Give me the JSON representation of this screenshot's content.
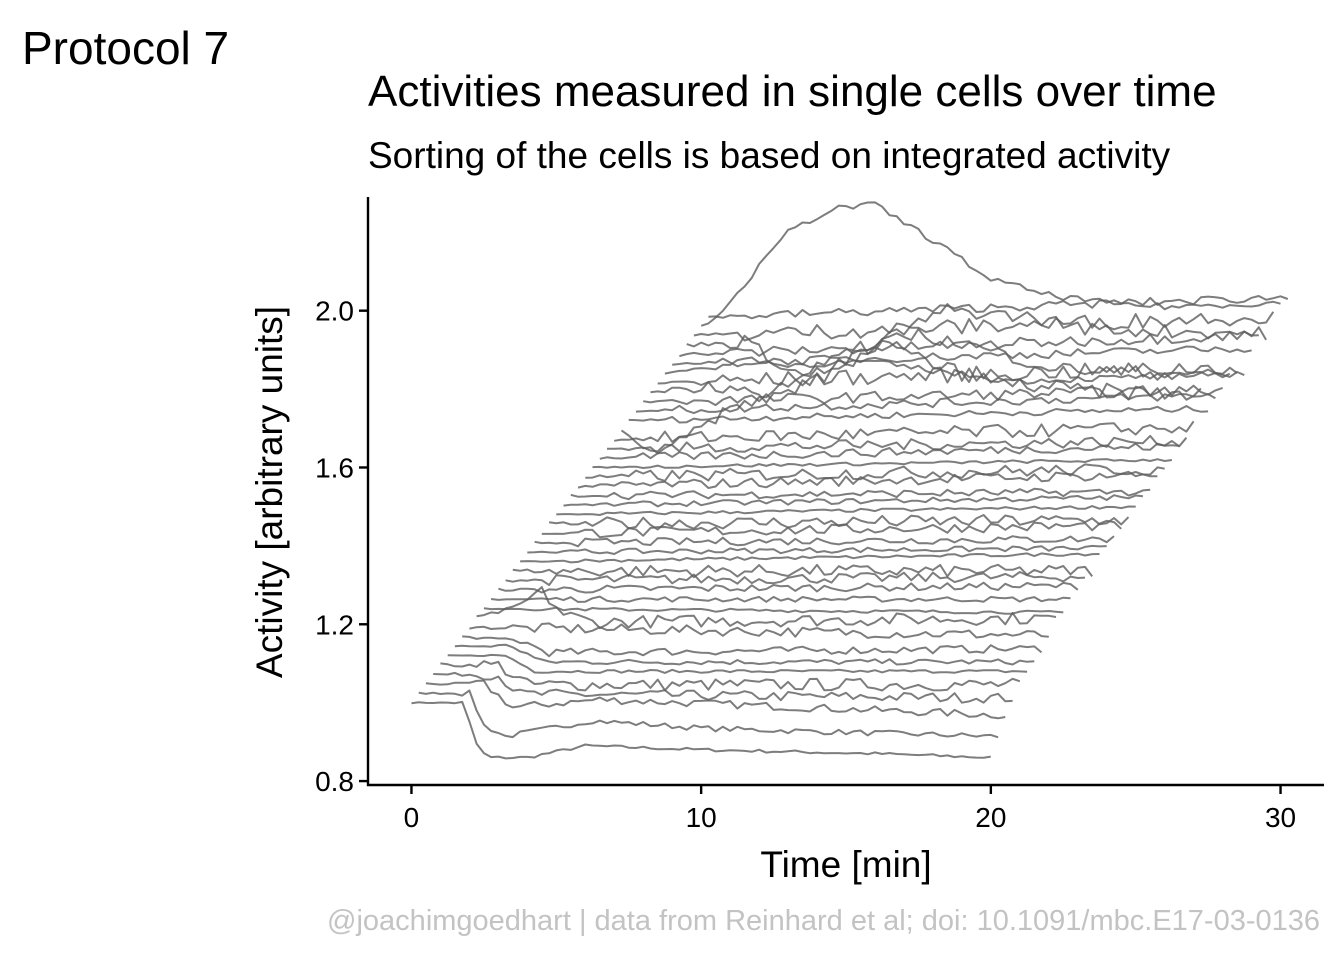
{
  "tag": "Protocol 7",
  "chart_data": {
    "type": "line",
    "title": "Activities measured in single cells over time",
    "subtitle": "Sorting of the cells is based on integrated activity",
    "xlabel": "Time [min]",
    "ylabel": "Activity [arbitrary units]",
    "xlim": [
      -1.5,
      31.5
    ],
    "ylim": [
      0.79,
      2.29
    ],
    "x_ticks": [
      0,
      10,
      20,
      30
    ],
    "x_tick_labels": [
      "0",
      "10",
      "20",
      "30"
    ],
    "y_ticks": [
      0.8,
      1.2,
      1.6,
      2.0
    ],
    "y_tick_labels": [
      "0.8",
      "1.2",
      "1.6",
      "2.0"
    ],
    "line_color": "#5c5c5c",
    "axis_color": "#000000",
    "n_cells": 42,
    "per_cell_time_offset_min": 0.25,
    "per_cell_activity_offset": 0.024,
    "time_step_min": 0.25,
    "duration_min": 20,
    "cells": [
      {
        "id": 1,
        "base": 1.0,
        "keypoints": [
          [
            0,
            0.0
          ],
          [
            1.8,
            0.0
          ],
          [
            2.2,
            -0.1
          ],
          [
            2.6,
            -0.14
          ],
          [
            4.0,
            -0.14
          ],
          [
            6.0,
            -0.11
          ],
          [
            10,
            -0.12
          ],
          [
            16,
            -0.13
          ],
          [
            20,
            -0.14
          ]
        ]
      },
      {
        "id": 2,
        "base": 1.0,
        "keypoints": [
          [
            0,
            0.0
          ],
          [
            1.8,
            0.0
          ],
          [
            2.2,
            -0.08
          ],
          [
            3.0,
            -0.11
          ],
          [
            6.0,
            -0.07
          ],
          [
            10,
            -0.09
          ],
          [
            20,
            -0.11
          ]
        ]
      },
      {
        "id": 3,
        "base": 1.0,
        "keypoints": [
          [
            0,
            0.0
          ],
          [
            2.0,
            0.0
          ],
          [
            3.0,
            -0.06
          ],
          [
            6.0,
            -0.04
          ],
          [
            20,
            -0.08
          ]
        ]
      },
      {
        "id": 4,
        "base": 1.0,
        "keypoints": [
          [
            0,
            0.0
          ],
          [
            2.2,
            0.0
          ],
          [
            3.0,
            -0.05
          ],
          [
            20,
            -0.06
          ]
        ]
      },
      {
        "id": 5,
        "base": 1.0,
        "keypoints": [
          [
            0,
            0.0
          ],
          [
            2.0,
            0.0
          ],
          [
            3.0,
            -0.05
          ],
          [
            20,
            -0.05
          ]
        ]
      },
      {
        "id": 6,
        "base": 1.0,
        "keypoints": [
          [
            0,
            0.0
          ],
          [
            2.0,
            0.0
          ],
          [
            3.0,
            -0.04
          ],
          [
            20,
            -0.04
          ]
        ]
      },
      {
        "id": 7,
        "base": 1.0,
        "keypoints": [
          [
            0,
            0.0
          ],
          [
            2.0,
            0.0
          ],
          [
            3.0,
            -0.04
          ],
          [
            20,
            -0.04
          ]
        ]
      },
      {
        "id": 8,
        "base": 1.0,
        "keypoints": [
          [
            0,
            0.0
          ],
          [
            2.0,
            -0.01
          ],
          [
            3.0,
            -0.04
          ],
          [
            20,
            -0.03
          ]
        ]
      },
      {
        "id": 9,
        "base": 1.0,
        "keypoints": [
          [
            0,
            0.0
          ],
          [
            20,
            -0.02
          ]
        ]
      },
      {
        "id": 10,
        "base": 1.0,
        "keypoints": [
          [
            0,
            0.0
          ],
          [
            1.5,
            0.03
          ],
          [
            2.2,
            0.07
          ],
          [
            3.0,
            0.01
          ],
          [
            4.0,
            -0.01
          ],
          [
            20,
            0.0
          ]
        ]
      },
      {
        "id": 11,
        "base": 1.0,
        "keypoints": [
          [
            0,
            0.0
          ],
          [
            20,
            -0.01
          ]
        ]
      },
      {
        "id": 12,
        "base": 1.0,
        "keypoints": [
          [
            0,
            0.0
          ],
          [
            20,
            0.0
          ]
        ]
      },
      {
        "id": 13,
        "base": 1.0,
        "keypoints": [
          [
            0,
            0.0
          ],
          [
            20,
            0.01
          ]
        ]
      },
      {
        "id": 14,
        "base": 1.0,
        "keypoints": [
          [
            0,
            0.0
          ],
          [
            20,
            0.01
          ]
        ]
      },
      {
        "id": 15,
        "base": 1.0,
        "keypoints": [
          [
            0,
            0.0
          ],
          [
            20,
            0.0
          ]
        ]
      },
      {
        "id": 16,
        "base": 1.0,
        "keypoints": [
          [
            0,
            0.0
          ],
          [
            20,
            0.02
          ]
        ]
      },
      {
        "id": 17,
        "base": 1.0,
        "keypoints": [
          [
            0,
            0.0
          ],
          [
            20,
            0.01
          ]
        ]
      },
      {
        "id": 18,
        "base": 1.0,
        "keypoints": [
          [
            0,
            0.0
          ],
          [
            20,
            0.01
          ]
        ]
      },
      {
        "id": 19,
        "base": 1.0,
        "keypoints": [
          [
            0,
            0.0
          ],
          [
            20,
            0.02
          ]
        ]
      },
      {
        "id": 20,
        "base": 1.0,
        "keypoints": [
          [
            0,
            0.0
          ],
          [
            20,
            0.01
          ]
        ]
      },
      {
        "id": 21,
        "base": 1.0,
        "keypoints": [
          [
            0,
            0.0
          ],
          [
            20,
            0.02
          ]
        ]
      },
      {
        "id": 22,
        "base": 1.0,
        "keypoints": [
          [
            0,
            0.0
          ],
          [
            20,
            0.02
          ]
        ]
      },
      {
        "id": 23,
        "base": 1.0,
        "keypoints": [
          [
            0,
            0.0
          ],
          [
            20,
            0.01
          ]
        ]
      },
      {
        "id": 24,
        "base": 1.0,
        "keypoints": [
          [
            0,
            0.0
          ],
          [
            20,
            0.03
          ]
        ]
      },
      {
        "id": 25,
        "base": 1.0,
        "keypoints": [
          [
            0,
            0.0
          ],
          [
            20,
            0.02
          ]
        ]
      },
      {
        "id": 26,
        "base": 1.0,
        "keypoints": [
          [
            0,
            0.0
          ],
          [
            20,
            0.02
          ]
        ]
      },
      {
        "id": 27,
        "base": 1.0,
        "keypoints": [
          [
            0,
            0.0
          ],
          [
            20,
            0.03
          ]
        ]
      },
      {
        "id": 28,
        "base": 1.0,
        "keypoints": [
          [
            0,
            0.0
          ],
          [
            20,
            0.02
          ]
        ]
      },
      {
        "id": 29,
        "base": 1.0,
        "keypoints": [
          [
            0,
            0.0
          ],
          [
            20,
            0.03
          ]
        ]
      },
      {
        "id": 30,
        "base": 1.0,
        "keypoints": [
          [
            0,
            0.0
          ],
          [
            0.6,
            -0.04
          ],
          [
            1.5,
            -0.06
          ],
          [
            4.0,
            0.06
          ],
          [
            6.0,
            0.13
          ],
          [
            8.0,
            0.2
          ],
          [
            9.0,
            0.22
          ],
          [
            11.0,
            0.16
          ],
          [
            13.0,
            0.12
          ],
          [
            16.0,
            0.1
          ],
          [
            20,
            0.09
          ]
        ]
      },
      {
        "id": 31,
        "base": 1.0,
        "keypoints": [
          [
            0,
            0.0
          ],
          [
            20,
            0.03
          ]
        ]
      },
      {
        "id": 32,
        "base": 1.0,
        "keypoints": [
          [
            0,
            0.0
          ],
          [
            20,
            0.04
          ]
        ]
      },
      {
        "id": 33,
        "base": 1.0,
        "keypoints": [
          [
            0,
            0.0
          ],
          [
            20,
            0.03
          ]
        ]
      },
      {
        "id": 34,
        "base": 1.0,
        "keypoints": [
          [
            0,
            0.0
          ],
          [
            2.0,
            0.02
          ],
          [
            3.0,
            0.01
          ],
          [
            4.0,
            -0.02
          ],
          [
            6.0,
            0.04
          ],
          [
            8.0,
            0.12
          ],
          [
            9.0,
            0.15
          ],
          [
            11.0,
            0.12
          ],
          [
            14.0,
            0.06
          ],
          [
            20,
            0.04
          ]
        ]
      },
      {
        "id": 35,
        "base": 1.0,
        "keypoints": [
          [
            0,
            0.0
          ],
          [
            20,
            0.04
          ]
        ]
      },
      {
        "id": 36,
        "base": 1.0,
        "keypoints": [
          [
            0,
            0.0
          ],
          [
            2.0,
            0.02
          ],
          [
            3.0,
            0.04
          ],
          [
            4.0,
            0.02
          ],
          [
            7.0,
            0.03
          ],
          [
            12.0,
            -0.02
          ],
          [
            20,
            0.0
          ]
        ]
      },
      {
        "id": 37,
        "base": 1.0,
        "keypoints": [
          [
            0,
            0.0
          ],
          [
            20,
            0.04
          ]
        ]
      },
      {
        "id": 38,
        "base": 1.0,
        "keypoints": [
          [
            0,
            0.0
          ],
          [
            20,
            0.05
          ]
        ]
      },
      {
        "id": 39,
        "base": 1.0,
        "keypoints": [
          [
            0,
            0.0
          ],
          [
            2.0,
            0.01
          ],
          [
            4.0,
            -0.08
          ],
          [
            5.0,
            -0.06
          ],
          [
            7.0,
            0.02
          ],
          [
            9.0,
            0.09
          ],
          [
            12.0,
            0.07
          ],
          [
            14.0,
            0.04
          ],
          [
            20,
            0.03
          ]
        ]
      },
      {
        "id": 40,
        "base": 1.0,
        "keypoints": [
          [
            0,
            0.0
          ],
          [
            20,
            0.05
          ]
        ]
      },
      {
        "id": 41,
        "base": 1.0,
        "keypoints": [
          [
            0,
            0.0
          ],
          [
            0.5,
            0.02
          ],
          [
            3.0,
            0.24
          ],
          [
            4.5,
            0.3
          ],
          [
            6.0,
            0.31
          ],
          [
            8.0,
            0.22
          ],
          [
            10.0,
            0.12
          ],
          [
            12.0,
            0.08
          ],
          [
            14.0,
            0.06
          ],
          [
            16.0,
            0.05
          ],
          [
            20,
            0.06
          ]
        ]
      },
      {
        "id": 42,
        "base": 1.0,
        "keypoints": [
          [
            0,
            0.0
          ],
          [
            20,
            0.05
          ]
        ]
      }
    ]
  },
  "caption": "@joachimgoedhart | data from Reinhard et al; doi: 10.1091/mbc.E17-03-0136"
}
